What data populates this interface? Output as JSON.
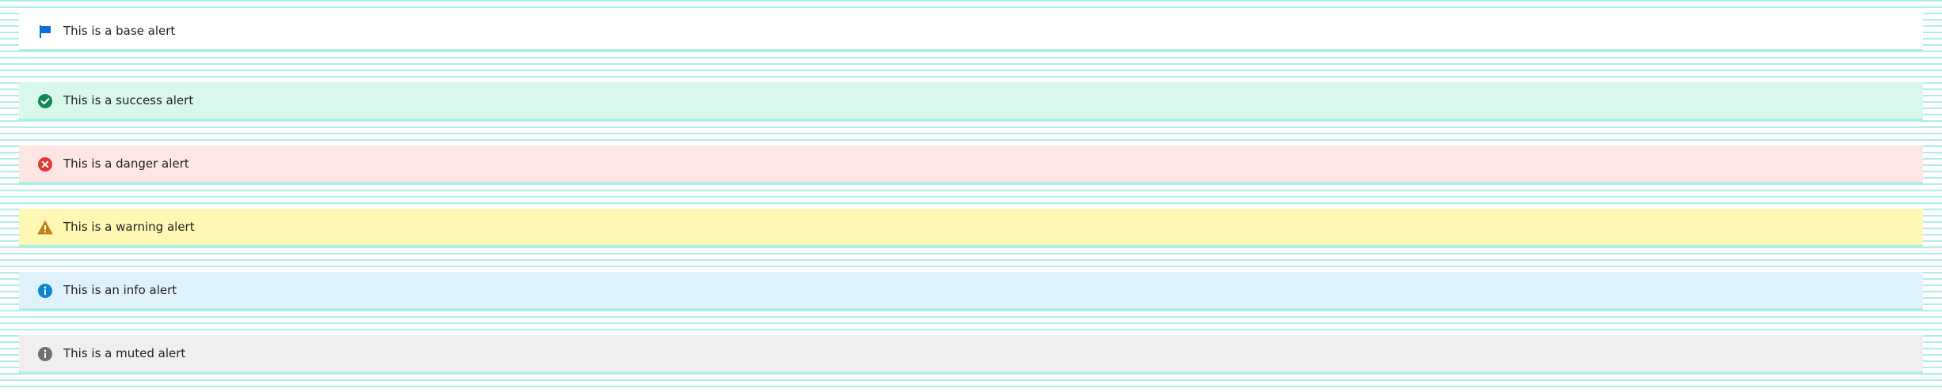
{
  "alerts": [
    {
      "key": "base",
      "text": "This is a base alert",
      "icon": "flag-icon",
      "background": "#ffffff",
      "icon_color": "#0a6fd6"
    },
    {
      "key": "success",
      "text": "This is a success alert",
      "icon": "check-circle-icon",
      "background": "#d8f8ec",
      "icon_color": "#12875a"
    },
    {
      "key": "danger",
      "text": "This is a danger alert",
      "icon": "x-circle-icon",
      "background": "#fee6e4",
      "icon_color": "#e23a2e"
    },
    {
      "key": "warning",
      "text": "This is a warning alert",
      "icon": "warning-icon",
      "background": "#fff8b5",
      "icon_color": "#c08016"
    },
    {
      "key": "info",
      "text": "This is an info alert",
      "icon": "info-icon",
      "background": "#dff2fc",
      "icon_color": "#0b86d0"
    },
    {
      "key": "muted",
      "text": "This is a muted alert",
      "icon": "info-icon",
      "background": "#f1eeef",
      "icon_color": "#6f6f6f"
    }
  ]
}
